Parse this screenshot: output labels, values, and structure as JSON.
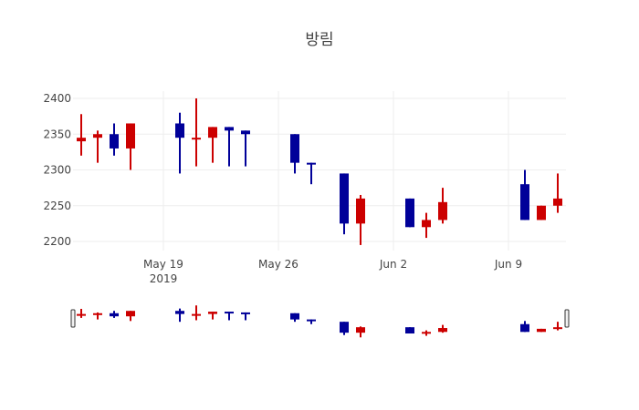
{
  "chart_data": {
    "type": "candlestick",
    "title": "방림",
    "xlabel": "",
    "ylabel": "",
    "ylim": [
      2185,
      2413
    ],
    "yticks": [
      2200,
      2250,
      2300,
      2350,
      2400
    ],
    "xticks": [
      {
        "date": "2019-05-19",
        "label": "May 19",
        "sublabel": "2019"
      },
      {
        "date": "2019-05-26",
        "label": "May 26",
        "sublabel": ""
      },
      {
        "date": "2019-06-02",
        "label": "Jun 2",
        "sublabel": ""
      },
      {
        "date": "2019-06-09",
        "label": "Jun 9",
        "sublabel": ""
      }
    ],
    "xrange": [
      "2019-05-13T12:00",
      "2019-06-12T20:00"
    ],
    "increasing_color": "#cc0000",
    "decreasing_color": "#000099",
    "grid": true,
    "rangeslider": true,
    "series": [
      {
        "date": "2019-05-14",
        "open": 2340,
        "high": 2378,
        "low": 2320,
        "close": 2345
      },
      {
        "date": "2019-05-15",
        "open": 2345,
        "high": 2355,
        "low": 2310,
        "close": 2350
      },
      {
        "date": "2019-05-16",
        "open": 2350,
        "high": 2365,
        "low": 2320,
        "close": 2330
      },
      {
        "date": "2019-05-17",
        "open": 2330,
        "high": 2365,
        "low": 2300,
        "close": 2365
      },
      {
        "date": "2019-05-20",
        "open": 2365,
        "high": 2380,
        "low": 2295,
        "close": 2345
      },
      {
        "date": "2019-05-21",
        "open": 2345,
        "high": 2400,
        "low": 2305,
        "close": 2345
      },
      {
        "date": "2019-05-22",
        "open": 2345,
        "high": 2360,
        "low": 2310,
        "close": 2360
      },
      {
        "date": "2019-05-23",
        "open": 2360,
        "high": 2360,
        "low": 2305,
        "close": 2355
      },
      {
        "date": "2019-05-24",
        "open": 2355,
        "high": 2355,
        "low": 2305,
        "close": 2350
      },
      {
        "date": "2019-05-27",
        "open": 2350,
        "high": 2350,
        "low": 2295,
        "close": 2310
      },
      {
        "date": "2019-05-28",
        "open": 2310,
        "high": 2310,
        "low": 2280,
        "close": 2308
      },
      {
        "date": "2019-05-30",
        "open": 2295,
        "high": 2295,
        "low": 2210,
        "close": 2225
      },
      {
        "date": "2019-05-31",
        "open": 2225,
        "high": 2265,
        "low": 2195,
        "close": 2260
      },
      {
        "date": "2019-06-03",
        "open": 2260,
        "high": 2260,
        "low": 2220,
        "close": 2220
      },
      {
        "date": "2019-06-04",
        "open": 2220,
        "high": 2240,
        "low": 2205,
        "close": 2230
      },
      {
        "date": "2019-06-05",
        "open": 2230,
        "high": 2275,
        "low": 2225,
        "close": 2255
      },
      {
        "date": "2019-06-10",
        "open": 2280,
        "high": 2300,
        "low": 2230,
        "close": 2230
      },
      {
        "date": "2019-06-11",
        "open": 2230,
        "high": 2250,
        "low": 2230,
        "close": 2250
      },
      {
        "date": "2019-06-12",
        "open": 2250,
        "high": 2295,
        "low": 2240,
        "close": 2260
      }
    ]
  }
}
